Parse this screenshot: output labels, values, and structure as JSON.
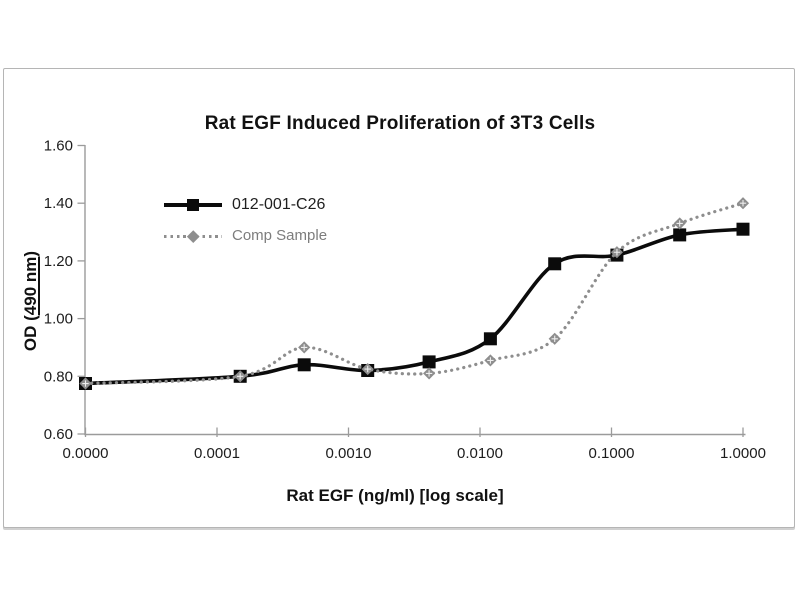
{
  "chart_data": {
    "type": "line",
    "title": "Rat EGF Induced Proliferation of 3T3 Cells",
    "xlabel": "Rat EGF (ng/ml) [log scale]",
    "ylabel": "OD (490 nm)",
    "ylabel_parts": {
      "prefix": "OD (",
      "underlined": "490 nm",
      "suffix": ")"
    },
    "x_scale": "log",
    "x": [
      0,
      0.00015,
      0.00046,
      0.0014,
      0.0041,
      0.012,
      0.037,
      0.11,
      0.33,
      1.0
    ],
    "x_tick_labels": [
      "0.0000",
      "0.0001",
      "0.0010",
      "0.0100",
      "0.1000",
      "1.0000"
    ],
    "y_ticks": [
      0.6,
      0.8,
      1.0,
      1.2,
      1.4,
      1.6
    ],
    "y_tick_labels": [
      "0.60",
      "0.80",
      "1.00",
      "1.20",
      "1.40",
      "1.60"
    ],
    "ylim": [
      0.6,
      1.6
    ],
    "grid": false,
    "legend_position": "upper-left-inside",
    "axis_color": "#9b9b9b",
    "series": [
      {
        "name": "012-001-C26",
        "color": "#0b0b0b",
        "marker": "square",
        "line_style": "solid",
        "values": [
          0.775,
          0.8,
          0.84,
          0.82,
          0.85,
          0.93,
          1.19,
          1.22,
          1.29,
          1.31
        ]
      },
      {
        "name": "Comp Sample",
        "color": "#8e8e8e",
        "marker": "diamond",
        "line_style": "dotted",
        "values": [
          0.775,
          0.8,
          0.9,
          0.825,
          0.81,
          0.855,
          0.93,
          1.23,
          1.33,
          1.4
        ]
      }
    ]
  }
}
